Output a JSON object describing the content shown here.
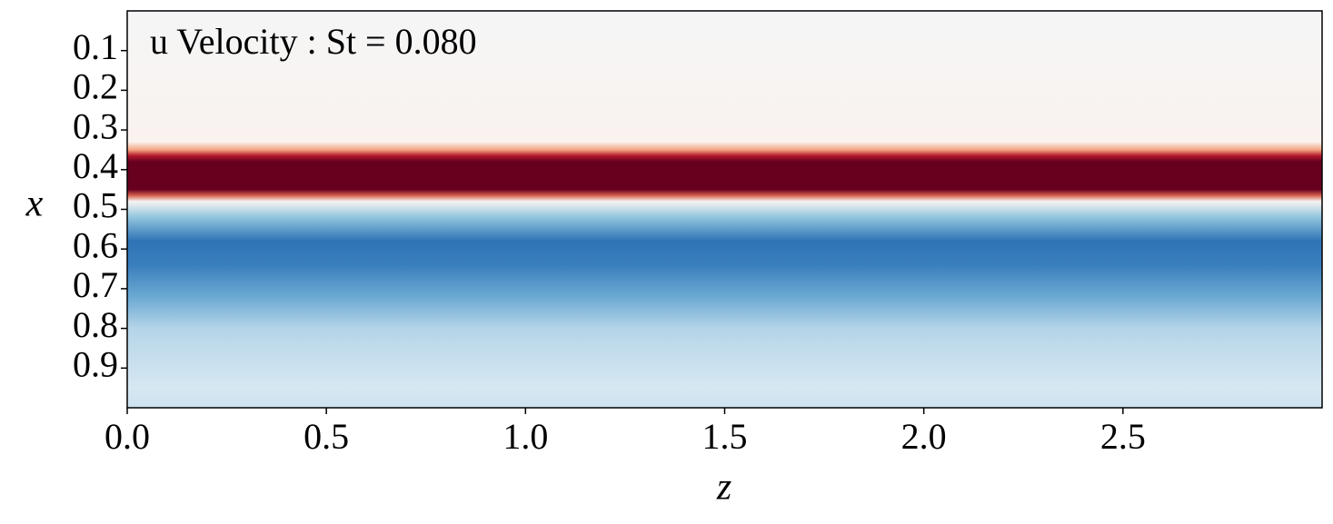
{
  "chart_data": {
    "type": "heatmap",
    "annotation": "u Velocity : St = 0.080",
    "xlabel": "z",
    "ylabel": "x",
    "xlim": [
      0,
      3
    ],
    "ylim": [
      0,
      1
    ],
    "y_inverted": true,
    "xticks": [
      {
        "value": 0,
        "label": "0.0"
      },
      0.5,
      {
        "value": 1,
        "label": "1.0"
      },
      1.5,
      {
        "value": 2,
        "label": "2.0"
      },
      2.5
    ],
    "yticks": [
      0.1,
      0.2,
      0.3,
      0.4,
      0.5,
      0.6,
      0.7,
      0.8,
      0.9
    ],
    "colormap": "RdBu_r"
  }
}
